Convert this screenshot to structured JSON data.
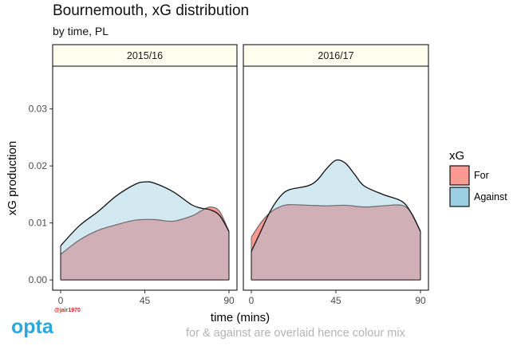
{
  "header": {
    "title": "Bournemouth, xG distribution",
    "subtitle": "by time, PL"
  },
  "footer": {
    "credit": "@jair1970",
    "logo": "opta",
    "caption": "for & against are overlaid hence colour mix"
  },
  "colors": {
    "for_fill": "#f8766d",
    "against_fill": "#9dcfe3",
    "overlap_fill": "#d4c8cb",
    "strip_bg": "#fffff0"
  },
  "chart_data": {
    "type": "area",
    "title": "Bournemouth, xG distribution",
    "subtitle": "by time, PL",
    "xlabel": "time (mins)",
    "ylabel": "xG production",
    "xlim": [
      0,
      90
    ],
    "ylim": [
      0,
      0.035
    ],
    "x_ticks": [
      0,
      45,
      90
    ],
    "y_ticks": [
      0.0,
      0.01,
      0.02,
      0.03
    ],
    "y_tick_labels": [
      "0.00",
      "0.01",
      "0.02",
      "0.03"
    ],
    "grid": false,
    "legend": {
      "title": "xG",
      "position": "right",
      "entries": [
        "For",
        "Against"
      ]
    },
    "facets": [
      {
        "label": "2015/16",
        "series": [
          {
            "name": "For",
            "x": [
              0,
              10,
              20,
              30,
              40,
              50,
              60,
              70,
              75,
              80,
              85,
              90
            ],
            "y": [
              0.0045,
              0.007,
              0.0087,
              0.0097,
              0.0105,
              0.0106,
              0.0103,
              0.0112,
              0.0121,
              0.0128,
              0.012,
              0.0085
            ]
          },
          {
            "name": "Against",
            "x": [
              0,
              10,
              20,
              30,
              40,
              45,
              50,
              60,
              70,
              75,
              80,
              85,
              90
            ],
            "y": [
              0.006,
              0.0095,
              0.012,
              0.0148,
              0.0168,
              0.0172,
              0.017,
              0.0155,
              0.0132,
              0.0126,
              0.0123,
              0.0113,
              0.0085
            ]
          }
        ]
      },
      {
        "label": "2016/17",
        "series": [
          {
            "name": "For",
            "x": [
              0,
              5,
              10,
              15,
              20,
              30,
              40,
              50,
              60,
              70,
              80,
              85,
              90
            ],
            "y": [
              0.0075,
              0.01,
              0.0118,
              0.0128,
              0.0132,
              0.0131,
              0.013,
              0.0131,
              0.0128,
              0.013,
              0.0131,
              0.0118,
              0.0085
            ]
          },
          {
            "name": "Against",
            "x": [
              0,
              5,
              10,
              15,
              20,
              30,
              35,
              40,
              45,
              50,
              55,
              60,
              70,
              80,
              85,
              90
            ],
            "y": [
              0.005,
              0.0085,
              0.012,
              0.0145,
              0.0158,
              0.0165,
              0.0175,
              0.0195,
              0.021,
              0.0205,
              0.0185,
              0.0165,
              0.015,
              0.0138,
              0.0118,
              0.0085
            ]
          }
        ]
      }
    ]
  }
}
